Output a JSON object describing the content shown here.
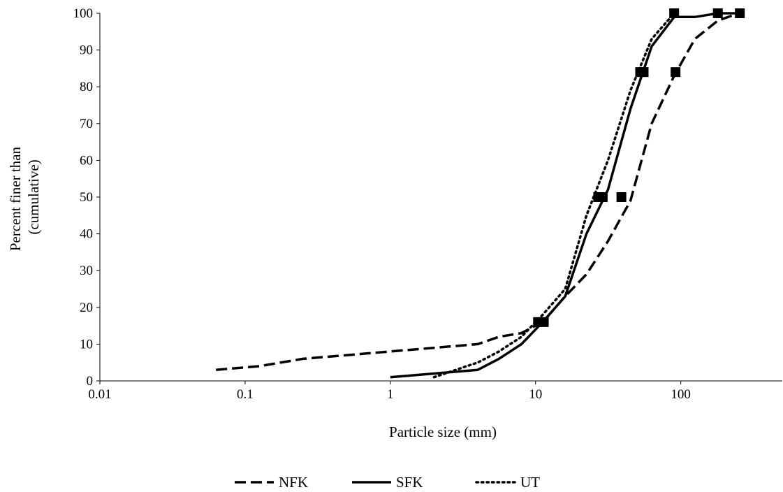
{
  "chart_data": {
    "type": "line",
    "title": "",
    "xlabel": "Particle size (mm)",
    "ylabel_lines": [
      "Percent finer than",
      "(cumulative)"
    ],
    "xscale": "log",
    "xlim": [
      0.01,
      500
    ],
    "ylim": [
      0,
      100
    ],
    "x_ticks": [
      {
        "value": 0.01,
        "label": "0.01"
      },
      {
        "value": 0.1,
        "label": "0.1"
      },
      {
        "value": 1,
        "label": "1"
      },
      {
        "value": 10,
        "label": "10"
      },
      {
        "value": 100,
        "label": "100"
      }
    ],
    "y_ticks": [
      0,
      10,
      20,
      30,
      40,
      50,
      60,
      70,
      80,
      90,
      100
    ],
    "grid": false,
    "legend_position": "bottom",
    "series": [
      {
        "name": "NFK",
        "style": "dashed",
        "x": [
          0.063,
          0.125,
          0.25,
          0.5,
          1,
          2,
          4,
          5.6,
          8,
          11.2,
          16,
          22.4,
          31.5,
          45,
          63,
          90,
          125,
          180,
          250
        ],
        "y": [
          3,
          4,
          6,
          7,
          8,
          9,
          10,
          12,
          13,
          16,
          23,
          29,
          38,
          49,
          70,
          83,
          93,
          98,
          100
        ]
      },
      {
        "name": "SFK",
        "style": "solid",
        "x": [
          1,
          2,
          4,
          5.6,
          8,
          11.2,
          16,
          22.4,
          31.5,
          45,
          63,
          90,
          125,
          180,
          250
        ],
        "y": [
          1,
          2,
          3,
          6,
          10,
          16,
          23,
          40,
          52,
          74,
          91,
          99,
          99,
          100,
          100
        ]
      },
      {
        "name": "UT",
        "style": "dotted",
        "x": [
          2,
          4,
          5.6,
          8,
          11.2,
          16,
          22.4,
          31.5,
          45,
          63,
          90
        ],
        "y": [
          1,
          5,
          8,
          12,
          18,
          25,
          45,
          60,
          79,
          93,
          100
        ]
      }
    ],
    "markers": [
      {
        "x": 10.4,
        "y": 16
      },
      {
        "x": 11.4,
        "y": 16
      },
      {
        "x": 27.0,
        "y": 50
      },
      {
        "x": 29.0,
        "y": 50
      },
      {
        "x": 39.0,
        "y": 50
      },
      {
        "x": 52.5,
        "y": 84
      },
      {
        "x": 55.5,
        "y": 84
      },
      {
        "x": 92.0,
        "y": 84
      },
      {
        "x": 90.0,
        "y": 100
      },
      {
        "x": 180.0,
        "y": 100
      },
      {
        "x": 255.0,
        "y": 100
      }
    ]
  }
}
